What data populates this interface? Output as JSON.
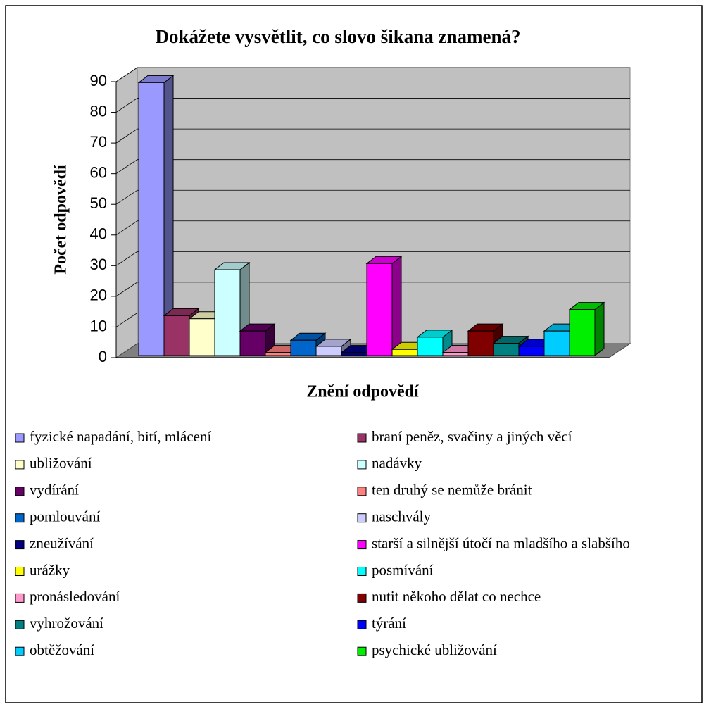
{
  "chart_data": {
    "type": "bar",
    "title": "Dokážete vysvětlit, co slovo šikana znamená?",
    "y_label": "Počet odpovědí",
    "x_label": "Znění odpovědí",
    "ylim": [
      0,
      90
    ],
    "yticks": [
      0,
      10,
      20,
      30,
      40,
      50,
      60,
      70,
      80,
      90
    ],
    "grid": true,
    "legend": "bottom",
    "series": [
      {
        "name": "fyzické napadání, bití, mlácení",
        "color": "#9999ff",
        "values": [
          89
        ]
      },
      {
        "name": "braní peněz, svačiny a jiných věcí",
        "color": "#993366",
        "values": [
          13
        ]
      },
      {
        "name": "ubližování",
        "color": "#ffffcc",
        "values": [
          12
        ]
      },
      {
        "name": "nadávky",
        "color": "#ccffff",
        "values": [
          28
        ]
      },
      {
        "name": "vydírání",
        "color": "#660066",
        "values": [
          8
        ]
      },
      {
        "name": "ten druhý se nemůže bránit",
        "color": "#ff8080",
        "values": [
          1
        ]
      },
      {
        "name": "pomlouvání",
        "color": "#0066cc",
        "values": [
          5
        ]
      },
      {
        "name": "naschvály",
        "color": "#ccccff",
        "values": [
          3
        ]
      },
      {
        "name": "zneužívání",
        "color": "#000080",
        "values": [
          1
        ]
      },
      {
        "name": "starší a silnější útočí na mladšího a slabšího",
        "color": "#ff00ff",
        "values": [
          30
        ]
      },
      {
        "name": "urážky",
        "color": "#ffff00",
        "values": [
          2
        ]
      },
      {
        "name": "posmívání",
        "color": "#00ffff",
        "values": [
          6
        ]
      },
      {
        "name": "pronásledování",
        "color": "#ff99cc",
        "values": [
          1
        ]
      },
      {
        "name": "nutit někoho dělat co nechce",
        "color": "#800000",
        "values": [
          8
        ]
      },
      {
        "name": "vyhrožování",
        "color": "#008080",
        "values": [
          4
        ]
      },
      {
        "name": "týrání",
        "color": "#0000ff",
        "values": [
          3
        ]
      },
      {
        "name": "obtěžování",
        "color": "#00ccff",
        "values": [
          8
        ]
      },
      {
        "name": "psychické ubližování",
        "color": "#00ee00",
        "values": [
          15
        ]
      }
    ]
  }
}
